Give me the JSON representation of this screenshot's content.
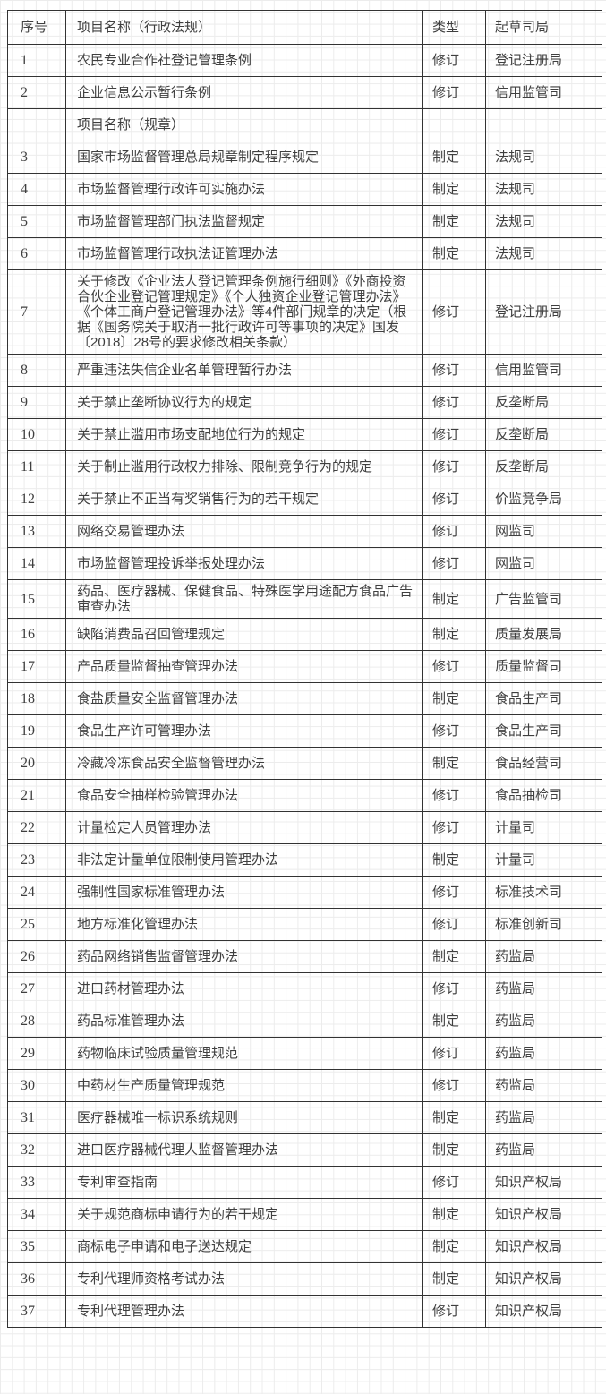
{
  "colors": {
    "text": "#3f3f3f",
    "table_border": "#333333",
    "background_grid": "#ececec",
    "background": "#ffffff"
  },
  "table": {
    "headers": {
      "no": "序号",
      "name": "项目名称（行政法规）",
      "type": "类型",
      "dept": "起草司局"
    },
    "section_row_label": "项目名称（规章）",
    "rows": [
      {
        "no": "1",
        "name": "农民专业合作社登记管理条例",
        "type": "修订",
        "dept": "登记注册局"
      },
      {
        "no": "2",
        "name": "企业信息公示暂行条例",
        "type": "修订",
        "dept": "信用监管司"
      },
      {
        "no": "",
        "name": "项目名称（规章）",
        "type": "",
        "dept": "",
        "section": true
      },
      {
        "no": "3",
        "name": "国家市场监督管理总局规章制定程序规定",
        "type": "制定",
        "dept": "法规司"
      },
      {
        "no": "4",
        "name": "市场监督管理行政许可实施办法",
        "type": "制定",
        "dept": "法规司"
      },
      {
        "no": "5",
        "name": "市场监督管理部门执法监督规定",
        "type": "制定",
        "dept": "法规司"
      },
      {
        "no": "6",
        "name": "市场监督管理行政执法证管理办法",
        "type": "制定",
        "dept": "法规司"
      },
      {
        "no": "7",
        "name": "关于修改《企业法人登记管理条例施行细则》《外商投资合伙企业登记管理规定》《个人独资企业登记管理办法》《个体工商户登记管理办法》等4件部门规章的决定（根据《国务院关于取消一批行政许可等事项的决定》国发〔2018〕28号的要求修改相关条款）",
        "type": "修订",
        "dept": "登记注册局"
      },
      {
        "no": "8",
        "name": "严重违法失信企业名单管理暂行办法",
        "type": "修订",
        "dept": "信用监管司"
      },
      {
        "no": "9",
        "name": "关于禁止垄断协议行为的规定",
        "type": "修订",
        "dept": "反垄断局"
      },
      {
        "no": "10",
        "name": "关于禁止滥用市场支配地位行为的规定",
        "type": "修订",
        "dept": "反垄断局"
      },
      {
        "no": "11",
        "name": "关于制止滥用行政权力排除、限制竞争行为的规定",
        "type": "修订",
        "dept": "反垄断局"
      },
      {
        "no": "12",
        "name": "关于禁止不正当有奖销售行为的若干规定",
        "type": "修订",
        "dept": "价监竞争局"
      },
      {
        "no": "13",
        "name": "网络交易管理办法",
        "type": "修订",
        "dept": "网监司"
      },
      {
        "no": "14",
        "name": "市场监督管理投诉举报处理办法",
        "type": "修订",
        "dept": "网监司"
      },
      {
        "no": "15",
        "name": "药品、医疗器械、保健食品、特殊医学用途配方食品广告审查办法",
        "type": "制定",
        "dept": "广告监管司"
      },
      {
        "no": "16",
        "name": "缺陷消费品召回管理规定",
        "type": "制定",
        "dept": "质量发展局"
      },
      {
        "no": "17",
        "name": "产品质量监督抽查管理办法",
        "type": "修订",
        "dept": "质量监督司"
      },
      {
        "no": "18",
        "name": "食盐质量安全监督管理办法",
        "type": "制定",
        "dept": "食品生产司"
      },
      {
        "no": "19",
        "name": "食品生产许可管理办法",
        "type": "修订",
        "dept": "食品生产司"
      },
      {
        "no": "20",
        "name": "冷藏冷冻食品安全监督管理办法",
        "type": "制定",
        "dept": "食品经营司"
      },
      {
        "no": "21",
        "name": "食品安全抽样检验管理办法",
        "type": "修订",
        "dept": "食品抽检司"
      },
      {
        "no": "22",
        "name": "计量检定人员管理办法",
        "type": "修订",
        "dept": "计量司"
      },
      {
        "no": "23",
        "name": "非法定计量单位限制使用管理办法",
        "type": "制定",
        "dept": "计量司"
      },
      {
        "no": "24",
        "name": "强制性国家标准管理办法",
        "type": "修订",
        "dept": "标准技术司"
      },
      {
        "no": "25",
        "name": "地方标准化管理办法",
        "type": "修订",
        "dept": "标准创新司"
      },
      {
        "no": "26",
        "name": "药品网络销售监督管理办法",
        "type": "制定",
        "dept": "药监局"
      },
      {
        "no": "27",
        "name": "进口药材管理办法",
        "type": "修订",
        "dept": "药监局"
      },
      {
        "no": "28",
        "name": "药品标准管理办法",
        "type": "制定",
        "dept": "药监局"
      },
      {
        "no": "29",
        "name": "药物临床试验质量管理规范",
        "type": "修订",
        "dept": "药监局"
      },
      {
        "no": "30",
        "name": "中药材生产质量管理规范",
        "type": "修订",
        "dept": "药监局"
      },
      {
        "no": "31",
        "name": "医疗器械唯一标识系统规则",
        "type": "制定",
        "dept": "药监局"
      },
      {
        "no": "32",
        "name": "进口医疗器械代理人监督管理办法",
        "type": "制定",
        "dept": "药监局"
      },
      {
        "no": "33",
        "name": "专利审查指南",
        "type": "修订",
        "dept": "知识产权局"
      },
      {
        "no": "34",
        "name": "关于规范商标申请行为的若干规定",
        "type": "制定",
        "dept": "知识产权局"
      },
      {
        "no": "35",
        "name": "商标电子申请和电子送达规定",
        "type": "制定",
        "dept": "知识产权局"
      },
      {
        "no": "36",
        "name": "专利代理师资格考试办法",
        "type": "制定",
        "dept": "知识产权局"
      },
      {
        "no": "37",
        "name": "专利代理管理办法",
        "type": "修订",
        "dept": "知识产权局"
      }
    ]
  }
}
